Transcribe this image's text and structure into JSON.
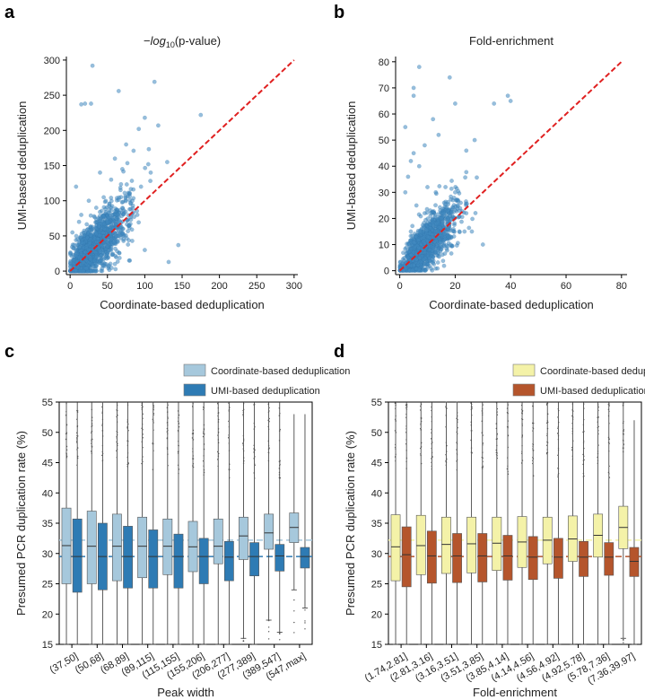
{
  "panels": [
    {
      "letter": "a"
    },
    {
      "letter": "b"
    },
    {
      "letter": "c"
    },
    {
      "letter": "d"
    }
  ],
  "chart_data": [
    {
      "id": "a",
      "type": "scatter",
      "title_prefix": "−log",
      "title_sub": "10",
      "title_suffix": "(p-value)",
      "xlabel": "Coordinate-based deduplication",
      "ylabel": "UMI-based deduplication",
      "xlim": [
        -5,
        305
      ],
      "ylim": [
        -5,
        305
      ],
      "xticks": [
        0,
        50,
        100,
        150,
        200,
        250,
        300
      ],
      "yticks": [
        0,
        50,
        100,
        150,
        200,
        250,
        300
      ],
      "diagonal": [
        [
          0,
          0
        ],
        [
          300,
          300
        ]
      ],
      "points": [
        [
          30,
          292
        ],
        [
          15,
          237
        ],
        [
          28,
          238
        ],
        [
          20,
          238
        ],
        [
          65,
          256
        ],
        [
          113,
          269
        ],
        [
          175,
          222
        ],
        [
          145,
          37
        ],
        [
          132,
          13
        ],
        [
          100,
          218
        ],
        [
          118,
          207
        ],
        [
          92,
          202
        ],
        [
          75,
          180
        ],
        [
          85,
          171
        ],
        [
          60,
          160
        ],
        [
          130,
          155
        ],
        [
          108,
          140
        ],
        [
          70,
          145
        ],
        [
          40,
          140
        ],
        [
          55,
          130
        ],
        [
          95,
          120
        ],
        [
          80,
          110
        ],
        [
          45,
          105
        ],
        [
          25,
          100
        ],
        [
          35,
          90
        ],
        [
          60,
          85
        ],
        [
          15,
          80
        ],
        [
          50,
          70
        ],
        [
          30,
          60
        ],
        [
          20,
          55
        ],
        [
          10,
          45
        ],
        [
          40,
          40
        ],
        [
          25,
          30
        ],
        [
          15,
          25
        ],
        [
          5,
          15
        ],
        [
          35,
          20
        ],
        [
          50,
          35
        ],
        [
          70,
          60
        ],
        [
          90,
          80
        ],
        [
          55,
          45
        ],
        [
          65,
          50
        ],
        [
          8,
          120
        ],
        [
          12,
          70
        ],
        [
          3,
          55
        ],
        [
          18,
          12
        ],
        [
          60,
          10
        ],
        [
          80,
          15
        ],
        [
          100,
          30
        ],
        [
          45,
          8
        ],
        [
          38,
          75
        ]
      ],
      "cluster": {
        "cx": 28,
        "cy": 30,
        "sx": 22,
        "sy": 26,
        "n": 1400
      }
    },
    {
      "id": "b",
      "type": "scatter",
      "title": "Fold-enrichment",
      "xlabel": "Coordinate-based deduplication",
      "ylabel": "UMI-based deduplication",
      "xlim": [
        -1.5,
        82
      ],
      "ylim": [
        -1.5,
        82
      ],
      "xticks": [
        0,
        20,
        40,
        60,
        80
      ],
      "yticks": [
        0,
        10,
        20,
        30,
        40,
        50,
        60,
        70,
        80
      ],
      "diagonal": [
        [
          0,
          0
        ],
        [
          80,
          80
        ]
      ],
      "points": [
        [
          7,
          78
        ],
        [
          5,
          70
        ],
        [
          5,
          67
        ],
        [
          18,
          74
        ],
        [
          2,
          55
        ],
        [
          20,
          64
        ],
        [
          34,
          64
        ],
        [
          39,
          67
        ],
        [
          40,
          65
        ],
        [
          12,
          58
        ],
        [
          14,
          52
        ],
        [
          27,
          50
        ],
        [
          24,
          46
        ],
        [
          4,
          42
        ],
        [
          7,
          40
        ],
        [
          3,
          36
        ],
        [
          10,
          32
        ],
        [
          13,
          30
        ],
        [
          20,
          30
        ],
        [
          22,
          26
        ],
        [
          6,
          25
        ],
        [
          9,
          22
        ],
        [
          15,
          20
        ],
        [
          18,
          18
        ],
        [
          4,
          15
        ],
        [
          26,
          15
        ],
        [
          30,
          10
        ],
        [
          8,
          8
        ],
        [
          3,
          5
        ],
        [
          12,
          3
        ],
        [
          5,
          45
        ],
        [
          9,
          48
        ],
        [
          2,
          30
        ],
        [
          16,
          26
        ],
        [
          24,
          22
        ]
      ],
      "cluster": {
        "cx": 8,
        "cy": 9,
        "sx": 5.5,
        "sy": 6.5,
        "n": 1400
      }
    },
    {
      "id": "c",
      "type": "box",
      "xlabel": "Peak width",
      "ylabel": "Presumed PCR duplication rate (%)",
      "ylim": [
        15,
        55
      ],
      "yticks": [
        15,
        20,
        25,
        30,
        35,
        40,
        45,
        50,
        55
      ],
      "categories": [
        "(37,50]",
        "(50,68]",
        "(68,89]",
        "(89,115]",
        "(115,155]",
        "(155,206]",
        "(206,277]",
        "(277,389]",
        "(389,547]",
        "(547,max]"
      ],
      "series": [
        {
          "name": "Coordinate-based deduplication",
          "color": "#a6c8dc",
          "boxes": [
            [
              15,
              25,
              31.3,
              37.5,
              55
            ],
            [
              15,
              25,
              31.2,
              37.0,
              55
            ],
            [
              15,
              25.5,
              31.2,
              36.5,
              55
            ],
            [
              15,
              26,
              31.2,
              36.0,
              55
            ],
            [
              15,
              26.5,
              31.2,
              35.7,
              55
            ],
            [
              15,
              27,
              31.1,
              35.3,
              55
            ],
            [
              15,
              28.3,
              31.2,
              35.7,
              55
            ],
            [
              16,
              29,
              32.9,
              36.0,
              55
            ],
            [
              19,
              30.7,
              33.4,
              36.5,
              55
            ],
            [
              24,
              31.8,
              34.3,
              36.7,
              53
            ]
          ],
          "mean": 32.2
        },
        {
          "name": "UMI-based deduplication",
          "color": "#2e7bb4",
          "boxes": [
            [
              15,
              23.6,
              29.5,
              35.7,
              55
            ],
            [
              15,
              24,
              29.5,
              35.0,
              55
            ],
            [
              15,
              24.3,
              29.5,
              34.5,
              55
            ],
            [
              15,
              24.3,
              29.5,
              33.9,
              55
            ],
            [
              15,
              24.3,
              29.5,
              33.2,
              55
            ],
            [
              15,
              25,
              29.5,
              32.5,
              55
            ],
            [
              15,
              25.5,
              29.4,
              32.0,
              55
            ],
            [
              15,
              26.3,
              29.5,
              31.8,
              55
            ],
            [
              17,
              27.1,
              29.6,
              31.5,
              55
            ],
            [
              21,
              27.6,
              29.5,
              31.0,
              53
            ]
          ],
          "mean": 29.5
        }
      ]
    },
    {
      "id": "d",
      "type": "box",
      "xlabel": "Fold-enrichment",
      "ylabel": "Presumed PCR duplication rate (%)",
      "ylim": [
        15,
        55
      ],
      "yticks": [
        15,
        20,
        25,
        30,
        35,
        40,
        45,
        50,
        55
      ],
      "categories": [
        "(1.74,2.81]",
        "(2.81,3.16]",
        "(3.16,3.51]",
        "(3.51,3.85]",
        "(3.85,4.14]",
        "(4.14,4.56]",
        "(4.56,4.92]",
        "(4.92,5.78]",
        "(5.78,7.36]",
        "(7.36,39.97]"
      ],
      "series": [
        {
          "name": "Coordinate-based deduplication",
          "color": "#f4f2a8",
          "boxes": [
            [
              15,
              25.5,
              31.1,
              36.4,
              55
            ],
            [
              15,
              26.5,
              31.3,
              36.3,
              55
            ],
            [
              15,
              26.7,
              31.5,
              36.0,
              55
            ],
            [
              15,
              26.8,
              31.6,
              36.0,
              55
            ],
            [
              15,
              27.2,
              31.7,
              36.0,
              55
            ],
            [
              15,
              27.7,
              31.9,
              36.1,
              55
            ],
            [
              15,
              28.3,
              32.2,
              36.0,
              55
            ],
            [
              15,
              28.7,
              32.4,
              36.2,
              55
            ],
            [
              15,
              29.4,
              33.0,
              36.5,
              55
            ],
            [
              16,
              30.8,
              34.3,
              37.8,
              55
            ]
          ],
          "mean": 32.2
        },
        {
          "name": "UMI-based deduplication",
          "color": "#b5552c",
          "boxes": [
            [
              15,
              24.5,
              29.8,
              34.4,
              55
            ],
            [
              15,
              25.1,
              29.6,
              33.7,
              55
            ],
            [
              15,
              25.2,
              29.6,
              33.3,
              55
            ],
            [
              15,
              25.3,
              29.6,
              33.3,
              55
            ],
            [
              15,
              25.6,
              29.6,
              33.0,
              55
            ],
            [
              15,
              25.7,
              29.4,
              32.8,
              55
            ],
            [
              15,
              25.9,
              29.4,
              32.5,
              55
            ],
            [
              15,
              26.2,
              29.4,
              32.0,
              55
            ],
            [
              15,
              26.4,
              29.4,
              31.8,
              55
            ],
            [
              15,
              26.2,
              28.7,
              31.0,
              52
            ]
          ],
          "mean": 29.5
        }
      ]
    }
  ]
}
